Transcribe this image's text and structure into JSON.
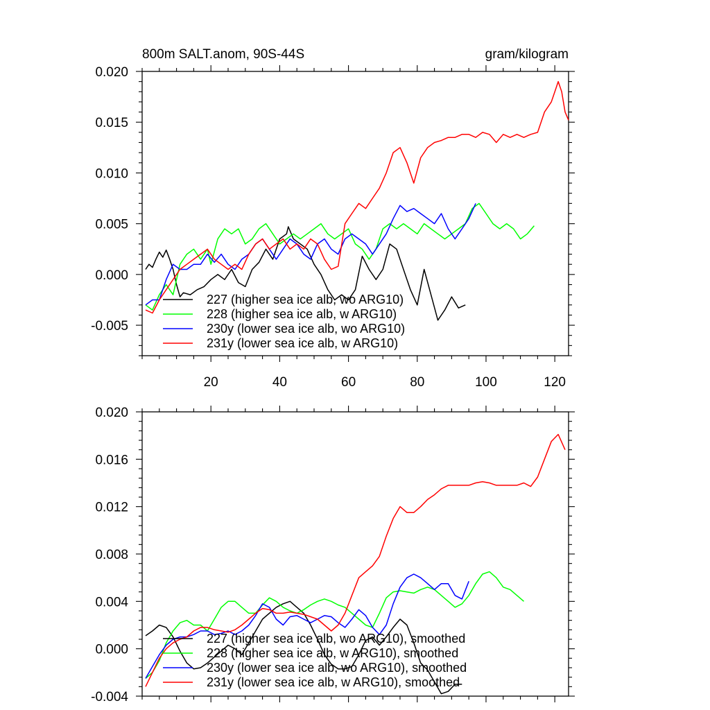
{
  "chart_data": [
    {
      "type": "line",
      "title": "800m SALT.anom, 90S-44S",
      "units": "gram/kilogram",
      "xlabel": "",
      "ylabel": "",
      "xlim": [
        0,
        124
      ],
      "ylim": [
        -0.008,
        0.02
      ],
      "xticks": [
        20,
        40,
        60,
        80,
        100,
        120
      ],
      "yticks": [
        -0.005,
        0.0,
        0.005,
        0.01,
        0.015,
        0.02
      ],
      "ytick_labels": [
        "-0.005",
        "0.000",
        "0.005",
        "0.010",
        "0.015",
        "0.020"
      ],
      "grid": false,
      "legend_position": "bottom-left",
      "series": [
        {
          "name": "227 (higher sea ice alb, wo ARG10)",
          "color": "#000000",
          "x": [
            1,
            2,
            3,
            4,
            5,
            6,
            7,
            8,
            9,
            10,
            11,
            12,
            14,
            16,
            18,
            20,
            22,
            24,
            26,
            28,
            30,
            32,
            34,
            36,
            38,
            40,
            42,
            42.5,
            44,
            46,
            48,
            50,
            52,
            54,
            56,
            58,
            60,
            62,
            64,
            66,
            68,
            70,
            72,
            74,
            76,
            78,
            80,
            82,
            84,
            86,
            88,
            90,
            92,
            94
          ],
          "y": [
            0.0005,
            0.001,
            0.0007,
            0.0015,
            0.0022,
            0.0017,
            0.0024,
            0.0015,
            0.0005,
            -0.001,
            -0.0022,
            -0.0018,
            -0.002,
            -0.0015,
            -0.0012,
            -0.0005,
            0.0,
            -0.0005,
            0.0005,
            -0.0008,
            -0.0012,
            0.0005,
            0.0012,
            0.0025,
            0.0015,
            0.0035,
            0.004,
            0.0047,
            0.0035,
            0.003,
            0.0025,
            0.001,
            0.0,
            -0.0015,
            -0.0025,
            -0.002,
            -0.0025,
            -0.0015,
            0.0018,
            0.0005,
            -0.0005,
            0.0005,
            0.003,
            0.0025,
            0.0005,
            -0.0015,
            -0.003,
            0.0005,
            -0.002,
            -0.0045,
            -0.0035,
            -0.0022,
            -0.0033,
            -0.003
          ]
        },
        {
          "name": "228 (higher sea ice alb, w ARG10)",
          "color": "#00ff00",
          "x": [
            1,
            3,
            5,
            7,
            9,
            11,
            13,
            15,
            17,
            19,
            20,
            22,
            24,
            26,
            28,
            30,
            32,
            34,
            36,
            38,
            40,
            42,
            44,
            46,
            48,
            50,
            52,
            54,
            56,
            58,
            60,
            62,
            64,
            66,
            68,
            70,
            72,
            74,
            76,
            78,
            80,
            82,
            84,
            86,
            88,
            90,
            92,
            94,
            96,
            98,
            100,
            102,
            104,
            106,
            108,
            110,
            112,
            114
          ],
          "y": [
            -0.003,
            -0.0035,
            -0.002,
            -0.001,
            -0.002,
            0.001,
            0.002,
            0.0025,
            0.0015,
            0.0025,
            0.001,
            0.0035,
            0.0045,
            0.004,
            0.0045,
            0.003,
            0.0035,
            0.0045,
            0.005,
            0.004,
            0.003,
            0.0035,
            0.004,
            0.0035,
            0.004,
            0.0045,
            0.005,
            0.004,
            0.0035,
            0.004,
            0.0045,
            0.003,
            0.0025,
            0.0015,
            0.0025,
            0.0045,
            0.005,
            0.0045,
            0.005,
            0.0045,
            0.004,
            0.005,
            0.0045,
            0.004,
            0.0035,
            0.004,
            0.0045,
            0.005,
            0.0065,
            0.007,
            0.006,
            0.005,
            0.0045,
            0.005,
            0.0045,
            0.0035,
            0.004,
            0.0048
          ]
        },
        {
          "name": "230y (lower sea ice alb, wo ARG10)",
          "color": "#0000ff",
          "x": [
            1,
            3,
            5,
            7,
            9,
            11,
            13,
            15,
            17,
            19,
            21,
            23,
            25,
            27,
            29,
            31,
            33,
            35,
            37,
            39,
            41,
            43,
            45,
            47,
            49,
            51,
            53,
            55,
            57,
            59,
            61,
            63,
            65,
            67,
            69,
            71,
            73,
            75,
            77,
            79,
            81,
            83,
            85,
            87,
            89,
            91,
            93,
            95,
            97
          ],
          "y": [
            -0.003,
            -0.0025,
            -0.0025,
            -0.0005,
            0.001,
            0.0005,
            0.0005,
            0.001,
            0.001,
            0.002,
            0.0012,
            0.002,
            0.001,
            0.0005,
            0.0015,
            0.002,
            0.003,
            0.0035,
            0.0025,
            0.0015,
            0.0025,
            0.0035,
            0.003,
            0.002,
            0.0015,
            0.003,
            0.0035,
            0.0025,
            0.002,
            0.0035,
            0.004,
            0.0035,
            0.003,
            0.002,
            0.003,
            0.004,
            0.0055,
            0.0068,
            0.0062,
            0.0065,
            0.006,
            0.0055,
            0.005,
            0.006,
            0.0045,
            0.0035,
            0.0045,
            0.0055,
            0.007
          ]
        },
        {
          "name": "231y (lower sea ice alb, w ARG10)",
          "color": "#ff0000",
          "x": [
            1,
            3,
            5,
            7,
            9,
            11,
            13,
            15,
            17,
            19,
            21,
            23,
            25,
            27,
            29,
            31,
            33,
            35,
            37,
            39,
            41,
            43,
            45,
            47,
            49,
            51,
            53,
            55,
            57,
            59,
            61,
            63,
            65,
            67,
            69,
            71,
            73,
            75,
            77,
            79,
            81,
            83,
            85,
            87,
            89,
            91,
            93,
            95,
            97,
            99,
            101,
            103,
            105,
            107,
            109,
            111,
            113,
            115,
            117,
            119,
            120,
            121,
            122,
            123,
            124
          ],
          "y": [
            -0.0035,
            -0.0038,
            -0.0025,
            -0.0015,
            -0.0005,
            0.0005,
            0.001,
            0.0015,
            0.002,
            0.0025,
            0.0015,
            0.001,
            0.0005,
            0.001,
            0.0005,
            0.002,
            0.003,
            0.0035,
            0.0025,
            0.003,
            0.0035,
            0.0025,
            0.003,
            0.0025,
            0.0035,
            0.003,
            0.0015,
            0.0005,
            0.0008,
            0.005,
            0.006,
            0.007,
            0.0065,
            0.0075,
            0.0085,
            0.01,
            0.012,
            0.0125,
            0.011,
            0.009,
            0.0115,
            0.0125,
            0.013,
            0.0132,
            0.0135,
            0.0135,
            0.0138,
            0.0138,
            0.0135,
            0.014,
            0.0138,
            0.013,
            0.0138,
            0.0135,
            0.0138,
            0.0135,
            0.0138,
            0.014,
            0.016,
            0.017,
            0.018,
            0.019,
            0.018,
            0.016,
            0.0152
          ]
        }
      ]
    },
    {
      "type": "line",
      "title": "",
      "xlabel": "",
      "ylabel": "",
      "xlim": [
        0,
        124
      ],
      "ylim": [
        -0.004,
        0.02
      ],
      "xticks": [
        20,
        40,
        60,
        80,
        100,
        120
      ],
      "yticks": [
        -0.004,
        0.0,
        0.004,
        0.008,
        0.012,
        0.016,
        0.02
      ],
      "ytick_labels": [
        "-0.004",
        "0.000",
        "0.004",
        "0.008",
        "0.012",
        "0.016",
        "0.020"
      ],
      "grid": false,
      "legend_position": "bottom-left",
      "series": [
        {
          "name": "227 (higher sea ice alb, wo ARG10), smoothed",
          "color": "#000000",
          "x": [
            1,
            3,
            5,
            7,
            9,
            11,
            13,
            15,
            17,
            19,
            21,
            23,
            25,
            27,
            29,
            31,
            33,
            35,
            37,
            39,
            41,
            43,
            45,
            47,
            49,
            51,
            53,
            55,
            57,
            59,
            61,
            63,
            65,
            67,
            69,
            71,
            73,
            75,
            77,
            79,
            81,
            83,
            85,
            87,
            89,
            91,
            93
          ],
          "y": [
            0.0011,
            0.0015,
            0.002,
            0.0018,
            0.001,
            -0.0002,
            -0.0012,
            -0.0017,
            -0.0016,
            -0.0012,
            -0.0007,
            -0.0002,
            0.0003,
            0.0,
            -0.0005,
            0.0005,
            0.0015,
            0.0025,
            0.003,
            0.0035,
            0.0038,
            0.004,
            0.0035,
            0.003,
            0.002,
            0.0008,
            -0.0005,
            -0.0013,
            -0.0017,
            -0.0017,
            -0.0015,
            -0.0005,
            0.0007,
            0.001,
            0.0003,
            0.001,
            0.0018,
            0.0025,
            0.002,
            0.0005,
            -0.0012,
            -0.0018,
            -0.0028,
            -0.0038,
            -0.0036,
            -0.003,
            -0.003
          ]
        },
        {
          "name": "228 (higher sea ice alb, w ARG10), smoothed",
          "color": "#00ff00",
          "x": [
            1,
            3,
            5,
            7,
            9,
            11,
            13,
            15,
            17,
            19,
            21,
            23,
            25,
            27,
            29,
            31,
            33,
            35,
            37,
            39,
            41,
            43,
            45,
            47,
            49,
            51,
            53,
            55,
            57,
            59,
            61,
            63,
            65,
            67,
            69,
            71,
            73,
            75,
            77,
            79,
            81,
            83,
            85,
            87,
            89,
            91,
            93,
            95,
            97,
            99,
            101,
            103,
            105,
            107,
            109,
            111
          ],
          "y": [
            -0.0025,
            -0.002,
            -0.001,
            0.0005,
            0.0015,
            0.0022,
            0.0024,
            0.002,
            0.002,
            0.0015,
            0.0025,
            0.0035,
            0.004,
            0.004,
            0.0035,
            0.003,
            0.003,
            0.0037,
            0.0043,
            0.004,
            0.0035,
            0.0032,
            0.003,
            0.0033,
            0.0037,
            0.004,
            0.0042,
            0.004,
            0.0037,
            0.0035,
            0.003,
            0.0025,
            0.002,
            0.0018,
            0.003,
            0.0043,
            0.0048,
            0.0049,
            0.0048,
            0.0047,
            0.005,
            0.0052,
            0.005,
            0.0045,
            0.004,
            0.0035,
            0.0038,
            0.0045,
            0.0055,
            0.0063,
            0.0065,
            0.006,
            0.0052,
            0.005,
            0.0045,
            0.004
          ]
        },
        {
          "name": "230y (lower sea ice alb, wo ARG10), smoothed",
          "color": "#0000ff",
          "x": [
            1,
            3,
            5,
            7,
            9,
            11,
            13,
            15,
            17,
            19,
            21,
            23,
            25,
            27,
            29,
            31,
            33,
            35,
            37,
            39,
            41,
            43,
            45,
            47,
            49,
            51,
            53,
            55,
            57,
            59,
            61,
            63,
            65,
            67,
            69,
            71,
            73,
            75,
            77,
            79,
            81,
            83,
            85,
            87,
            89,
            91,
            93,
            95
          ],
          "y": [
            -0.0025,
            -0.0015,
            -0.0005,
            0.0003,
            0.0008,
            0.001,
            0.001,
            0.0012,
            0.0015,
            0.0015,
            0.0012,
            0.0013,
            0.0015,
            0.0012,
            0.0015,
            0.002,
            0.0028,
            0.0038,
            0.0035,
            0.0025,
            0.002,
            0.0027,
            0.0028,
            0.0025,
            0.0022,
            0.0025,
            0.0028,
            0.0027,
            0.0022,
            0.0018,
            0.0025,
            0.0033,
            0.0028,
            0.0018,
            0.0012,
            0.002,
            0.0038,
            0.0052,
            0.006,
            0.0063,
            0.006,
            0.0055,
            0.005,
            0.0055,
            0.0055,
            0.0045,
            0.0042,
            0.0057
          ]
        },
        {
          "name": "231y (lower sea ice alb, w ARG10), smoothed",
          "color": "#ff0000",
          "x": [
            1,
            3,
            5,
            7,
            9,
            11,
            13,
            15,
            17,
            19,
            21,
            23,
            25,
            27,
            29,
            31,
            33,
            35,
            37,
            39,
            41,
            43,
            45,
            47,
            49,
            51,
            53,
            55,
            57,
            59,
            61,
            63,
            65,
            67,
            69,
            71,
            73,
            75,
            77,
            79,
            81,
            83,
            85,
            87,
            89,
            91,
            93,
            95,
            97,
            99,
            101,
            103,
            105,
            107,
            109,
            111,
            113,
            115,
            117,
            119,
            121,
            123
          ],
          "y": [
            -0.0032,
            -0.002,
            -0.0008,
            0.0,
            0.0005,
            0.0008,
            0.001,
            0.0015,
            0.0018,
            0.0018,
            0.0016,
            0.0015,
            0.0014,
            0.0016,
            0.002,
            0.0025,
            0.003,
            0.0034,
            0.0033,
            0.003,
            0.003,
            0.0031,
            0.003,
            0.0029,
            0.0027,
            0.0025,
            0.002,
            0.0015,
            0.002,
            0.003,
            0.0045,
            0.006,
            0.0065,
            0.007,
            0.0078,
            0.0095,
            0.011,
            0.012,
            0.0115,
            0.0115,
            0.012,
            0.0126,
            0.013,
            0.0135,
            0.0138,
            0.0138,
            0.0138,
            0.0138,
            0.014,
            0.0141,
            0.014,
            0.0138,
            0.0138,
            0.0138,
            0.0138,
            0.014,
            0.0137,
            0.0145,
            0.016,
            0.0175,
            0.0181,
            0.0168
          ]
        }
      ]
    }
  ]
}
